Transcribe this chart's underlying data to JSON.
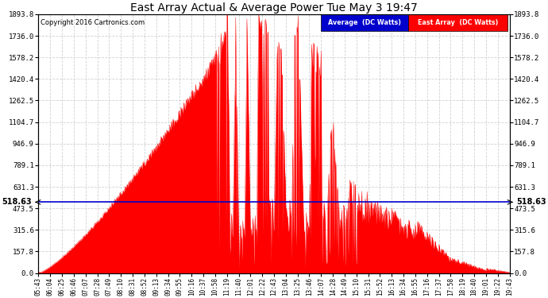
{
  "title": "East Array Actual & Average Power Tue May 3 19:47",
  "copyright": "Copyright 2016 Cartronics.com",
  "average_value": 518.63,
  "y_max": 1893.8,
  "y_ticks": [
    0.0,
    157.8,
    315.6,
    473.5,
    631.3,
    789.1,
    946.9,
    1104.7,
    1262.5,
    1420.4,
    1578.2,
    1736.0,
    1893.8
  ],
  "background_color": "#ffffff",
  "fill_color": "#ff0000",
  "line_color": "#0000cc",
  "grid_color": "#cccccc",
  "legend_avg_bg": "#0000cc",
  "legend_ea_bg": "#ff0000",
  "x_labels": [
    "05:43",
    "06:04",
    "06:25",
    "06:46",
    "07:07",
    "07:28",
    "07:49",
    "08:10",
    "08:31",
    "08:52",
    "09:13",
    "09:34",
    "09:55",
    "10:16",
    "10:37",
    "10:58",
    "11:19",
    "11:40",
    "12:01",
    "12:22",
    "12:43",
    "13:04",
    "13:25",
    "13:46",
    "14:07",
    "14:28",
    "14:49",
    "15:10",
    "15:31",
    "15:52",
    "16:13",
    "16:34",
    "16:55",
    "17:16",
    "17:37",
    "17:58",
    "18:19",
    "18:40",
    "19:01",
    "19:22",
    "19:43"
  ]
}
